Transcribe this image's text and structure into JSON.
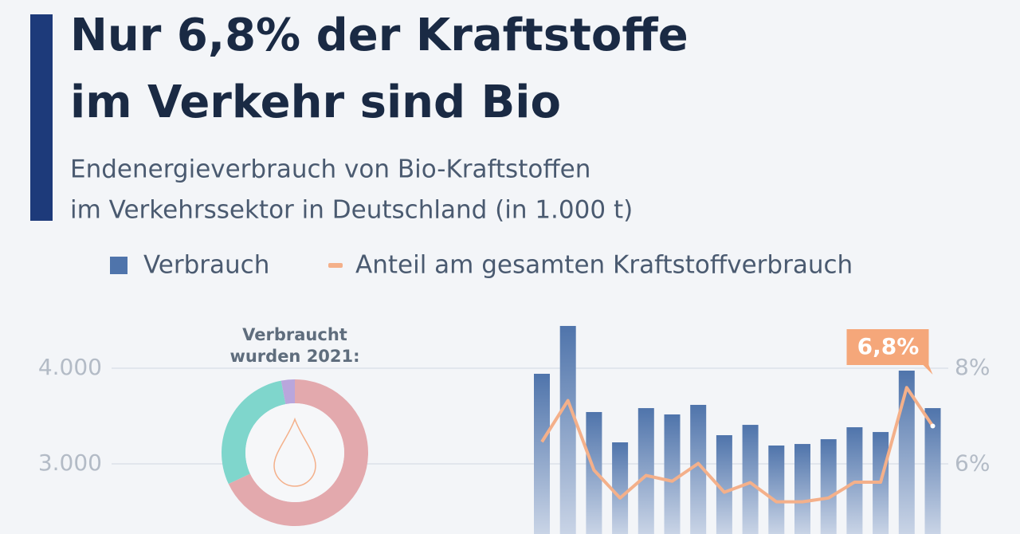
{
  "chart_data": {
    "type": "bar-line",
    "title": [
      "Nur 6,8% der Kraftstoffe",
      "im Verkehr sind Bio"
    ],
    "subtitle": [
      "Endenergieverbrauch von Bio-Kraftstoffen",
      "im Verkehrssektor in Deutschland (in 1.000 t)"
    ],
    "categories": [
      null,
      null,
      null,
      null,
      null,
      null,
      null,
      null,
      null,
      null,
      null,
      null,
      null,
      null,
      null,
      null
    ],
    "series": [
      {
        "name": "Verbrauch",
        "color": "#4f74ab",
        "values": [
          3942,
          4442,
          3542,
          3225,
          3583,
          3517,
          3617,
          3300,
          3408,
          3192,
          3208,
          3258,
          3383,
          3333,
          3975,
          3583
        ]
      },
      {
        "name": "Anteil am gesamten Kraftstoffverbrauch",
        "color": "#f4b08a",
        "axis": "y2",
        "values": [
          6.47,
          7.33,
          5.88,
          5.3,
          5.77,
          5.65,
          6.02,
          5.42,
          5.62,
          5.22,
          5.22,
          5.3,
          5.63,
          5.63,
          7.6,
          6.8
        ],
        "value_labels": [
          null,
          null,
          null,
          null,
          null,
          null,
          null,
          null,
          null,
          null,
          null,
          null,
          null,
          null,
          null,
          "6,8%"
        ]
      }
    ],
    "ylim": [
      2267,
      4500
    ],
    "yticks": [
      {
        "value": 4000,
        "label": "4.000"
      },
      {
        "value": 3000,
        "label": "3.000"
      }
    ],
    "y2lim": [
      4.55,
      9.0
    ],
    "y2ticks": [
      {
        "value": 8,
        "label": "8%"
      },
      {
        "value": 6,
        "label": "6%"
      }
    ],
    "grid": true,
    "donut": {
      "label": [
        "Verbraucht",
        "wurden 2021:"
      ],
      "values": [
        68,
        29,
        3
      ],
      "colors": [
        "#e3a9ad",
        "#7fd6cc",
        "#b9a6dc"
      ]
    }
  }
}
